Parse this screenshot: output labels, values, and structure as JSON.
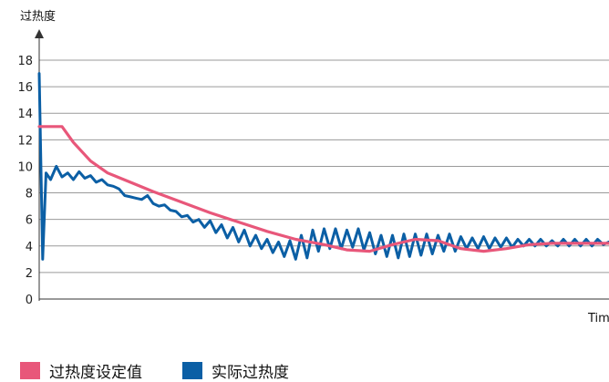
{
  "chart_data": {
    "type": "line",
    "ylabel": "过热度",
    "xlabel": "Tim",
    "ylim": [
      0,
      18
    ],
    "yticks": [
      0,
      2,
      4,
      6,
      8,
      10,
      12,
      14,
      16,
      18
    ],
    "xlim": [
      0,
      100
    ],
    "grid": true,
    "legend_position": "bottom-left",
    "series": [
      {
        "name": "过热度设定值",
        "color": "#e8577a",
        "x": [
          0,
          4,
          6,
          9,
          12,
          16,
          20,
          25,
          30,
          35,
          40,
          45,
          50,
          54,
          58,
          62,
          66,
          70,
          74,
          78,
          82,
          86,
          90,
          94,
          98,
          100
        ],
        "y": [
          13,
          13,
          11.8,
          10.4,
          9.5,
          8.8,
          8.1,
          7.3,
          6.5,
          5.8,
          5.1,
          4.5,
          4.1,
          3.7,
          3.6,
          4.1,
          4.5,
          4.4,
          3.8,
          3.6,
          3.8,
          4.1,
          4.2,
          4.2,
          4.2,
          4.2
        ]
      },
      {
        "name": "实际过热度",
        "color": "#0b5fa5",
        "x": [
          0,
          0.6,
          1.2,
          2,
          3,
          4,
          5,
          6,
          7,
          8,
          9,
          10,
          11,
          12,
          13,
          14,
          15,
          16,
          17,
          18,
          19,
          20,
          21,
          22,
          23,
          24,
          25,
          26,
          27,
          28,
          29,
          30,
          31,
          32,
          33,
          34,
          35,
          36,
          37,
          38,
          39,
          40,
          41,
          42,
          43,
          44,
          45,
          46,
          47,
          48,
          49,
          50,
          51,
          52,
          53,
          54,
          55,
          56,
          57,
          58,
          59,
          60,
          61,
          62,
          63,
          64,
          65,
          66,
          67,
          68,
          69,
          70,
          71,
          72,
          73,
          74,
          75,
          76,
          77,
          78,
          79,
          80,
          81,
          82,
          83,
          84,
          85,
          86,
          87,
          88,
          89,
          90,
          91,
          92,
          93,
          94,
          95,
          96,
          97,
          98,
          99,
          100
        ],
        "y": [
          17,
          3,
          9.5,
          9,
          10,
          9.2,
          9.5,
          9.0,
          9.6,
          9.1,
          9.3,
          8.8,
          9.0,
          8.6,
          8.5,
          8.3,
          7.8,
          7.7,
          7.6,
          7.5,
          7.8,
          7.2,
          7.0,
          7.1,
          6.7,
          6.6,
          6.2,
          6.3,
          5.8,
          6.0,
          5.4,
          5.9,
          5.0,
          5.6,
          4.6,
          5.4,
          4.3,
          5.2,
          4.0,
          4.8,
          3.8,
          4.5,
          3.5,
          4.3,
          3.2,
          4.4,
          3.0,
          4.8,
          3.1,
          5.2,
          3.6,
          5.3,
          3.8,
          5.3,
          3.8,
          5.2,
          3.9,
          5.3,
          3.7,
          5.0,
          3.4,
          4.8,
          3.2,
          4.8,
          3.1,
          4.9,
          3.2,
          4.9,
          3.3,
          4.9,
          3.4,
          4.8,
          3.6,
          4.9,
          3.6,
          4.7,
          3.8,
          4.6,
          3.8,
          4.7,
          3.8,
          4.6,
          3.9,
          4.6,
          3.9,
          4.5,
          4.0,
          4.5,
          4.0,
          4.5,
          4.0,
          4.4,
          4.0,
          4.5,
          4.0,
          4.5,
          4.0,
          4.5,
          4.0,
          4.5,
          4.1,
          4.3
        ]
      }
    ]
  }
}
